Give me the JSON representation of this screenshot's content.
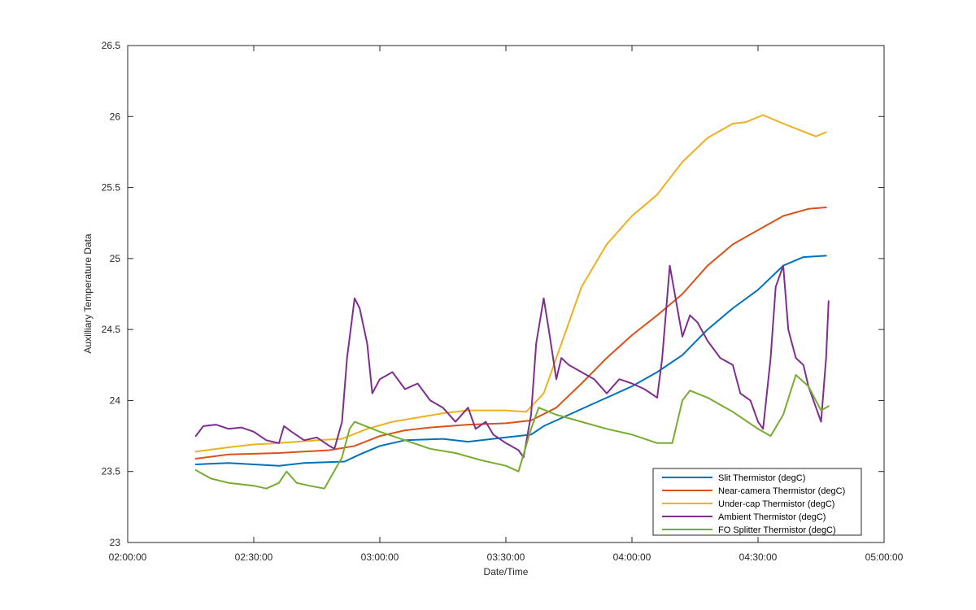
{
  "chart_data": {
    "type": "line",
    "title": "",
    "xlabel": "Date/Time",
    "ylabel": "Auxilliary Temperature Data",
    "x_unit": "hours",
    "xlim": [
      2.0,
      5.0
    ],
    "ylim": [
      23,
      26.5
    ],
    "x_ticks": [
      {
        "value": 2.0,
        "label": "02:00:00"
      },
      {
        "value": 2.5,
        "label": "02:30:00"
      },
      {
        "value": 3.0,
        "label": "03:00:00"
      },
      {
        "value": 3.5,
        "label": "03:30:00"
      },
      {
        "value": 4.0,
        "label": "04:00:00"
      },
      {
        "value": 4.5,
        "label": "04:30:00"
      },
      {
        "value": 5.0,
        "label": "05:00:00"
      }
    ],
    "y_ticks": [
      {
        "value": 23,
        "label": "23"
      },
      {
        "value": 23.5,
        "label": "23.5"
      },
      {
        "value": 24,
        "label": "24"
      },
      {
        "value": 24.5,
        "label": "24.5"
      },
      {
        "value": 25,
        "label": "25"
      },
      {
        "value": 25.5,
        "label": "25.5"
      },
      {
        "value": 26,
        "label": "26"
      },
      {
        "value": 26.5,
        "label": "26.5"
      }
    ],
    "grid": false,
    "legend_position": "bottom-right",
    "series": [
      {
        "name": "Slit Thermistor (degC)",
        "color": "#0072BD",
        "points": [
          [
            2.27,
            23.55
          ],
          [
            2.4,
            23.56
          ],
          [
            2.6,
            23.54
          ],
          [
            2.7,
            23.56
          ],
          [
            2.86,
            23.57
          ],
          [
            2.92,
            23.62
          ],
          [
            3.0,
            23.68
          ],
          [
            3.1,
            23.72
          ],
          [
            3.25,
            23.73
          ],
          [
            3.35,
            23.71
          ],
          [
            3.5,
            23.74
          ],
          [
            3.6,
            23.76
          ],
          [
            3.65,
            23.82
          ],
          [
            3.75,
            23.9
          ],
          [
            3.85,
            23.98
          ],
          [
            4.0,
            24.1
          ],
          [
            4.1,
            24.2
          ],
          [
            4.2,
            24.32
          ],
          [
            4.3,
            24.5
          ],
          [
            4.4,
            24.65
          ],
          [
            4.5,
            24.78
          ],
          [
            4.6,
            24.95
          ],
          [
            4.68,
            25.01
          ],
          [
            4.77,
            25.02
          ]
        ]
      },
      {
        "name": "Near-camera Thermistor (degC)",
        "color": "#D95319",
        "points": [
          [
            2.27,
            23.59
          ],
          [
            2.4,
            23.62
          ],
          [
            2.6,
            23.63
          ],
          [
            2.8,
            23.65
          ],
          [
            2.9,
            23.68
          ],
          [
            3.0,
            23.75
          ],
          [
            3.1,
            23.79
          ],
          [
            3.2,
            23.81
          ],
          [
            3.35,
            23.83
          ],
          [
            3.5,
            23.84
          ],
          [
            3.6,
            23.86
          ],
          [
            3.7,
            23.95
          ],
          [
            3.8,
            24.12
          ],
          [
            3.9,
            24.3
          ],
          [
            4.0,
            24.46
          ],
          [
            4.1,
            24.6
          ],
          [
            4.2,
            24.75
          ],
          [
            4.3,
            24.95
          ],
          [
            4.4,
            25.1
          ],
          [
            4.5,
            25.2
          ],
          [
            4.6,
            25.3
          ],
          [
            4.7,
            25.35
          ],
          [
            4.77,
            25.36
          ]
        ]
      },
      {
        "name": "Under-cap Thermistor (degC)",
        "color": "#EDB120",
        "points": [
          [
            2.27,
            23.64
          ],
          [
            2.4,
            23.67
          ],
          [
            2.5,
            23.69
          ],
          [
            2.6,
            23.7
          ],
          [
            2.75,
            23.72
          ],
          [
            2.85,
            23.73
          ],
          [
            2.95,
            23.8
          ],
          [
            3.05,
            23.85
          ],
          [
            3.15,
            23.88
          ],
          [
            3.25,
            23.91
          ],
          [
            3.35,
            23.93
          ],
          [
            3.5,
            23.93
          ],
          [
            3.58,
            23.92
          ],
          [
            3.65,
            24.05
          ],
          [
            3.72,
            24.4
          ],
          [
            3.8,
            24.8
          ],
          [
            3.9,
            25.1
          ],
          [
            4.0,
            25.3
          ],
          [
            4.1,
            25.45
          ],
          [
            4.2,
            25.68
          ],
          [
            4.3,
            25.85
          ],
          [
            4.4,
            25.95
          ],
          [
            4.45,
            25.96
          ],
          [
            4.52,
            26.01
          ],
          [
            4.6,
            25.95
          ],
          [
            4.7,
            25.88
          ],
          [
            4.73,
            25.86
          ],
          [
            4.77,
            25.89
          ]
        ]
      },
      {
        "name": "Ambient Thermistor (degC)",
        "color": "#7E2F8E",
        "points": [
          [
            2.27,
            23.75
          ],
          [
            2.3,
            23.82
          ],
          [
            2.35,
            23.83
          ],
          [
            2.4,
            23.8
          ],
          [
            2.45,
            23.81
          ],
          [
            2.5,
            23.78
          ],
          [
            2.55,
            23.72
          ],
          [
            2.6,
            23.7
          ],
          [
            2.62,
            23.82
          ],
          [
            2.65,
            23.78
          ],
          [
            2.7,
            23.72
          ],
          [
            2.75,
            23.74
          ],
          [
            2.8,
            23.68
          ],
          [
            2.82,
            23.66
          ],
          [
            2.85,
            23.85
          ],
          [
            2.87,
            24.3
          ],
          [
            2.9,
            24.72
          ],
          [
            2.92,
            24.65
          ],
          [
            2.95,
            24.4
          ],
          [
            2.97,
            24.05
          ],
          [
            3.0,
            24.15
          ],
          [
            3.05,
            24.2
          ],
          [
            3.1,
            24.08
          ],
          [
            3.15,
            24.12
          ],
          [
            3.2,
            24.0
          ],
          [
            3.25,
            23.95
          ],
          [
            3.3,
            23.85
          ],
          [
            3.35,
            23.95
          ],
          [
            3.38,
            23.8
          ],
          [
            3.42,
            23.85
          ],
          [
            3.45,
            23.76
          ],
          [
            3.5,
            23.7
          ],
          [
            3.55,
            23.65
          ],
          [
            3.57,
            23.6
          ],
          [
            3.6,
            23.9
          ],
          [
            3.62,
            24.4
          ],
          [
            3.65,
            24.72
          ],
          [
            3.67,
            24.5
          ],
          [
            3.7,
            24.15
          ],
          [
            3.72,
            24.3
          ],
          [
            3.75,
            24.25
          ],
          [
            3.8,
            24.2
          ],
          [
            3.85,
            24.15
          ],
          [
            3.9,
            24.05
          ],
          [
            3.95,
            24.15
          ],
          [
            4.0,
            24.12
          ],
          [
            4.05,
            24.08
          ],
          [
            4.1,
            24.02
          ],
          [
            4.12,
            24.3
          ],
          [
            4.15,
            24.95
          ],
          [
            4.17,
            24.75
          ],
          [
            4.2,
            24.45
          ],
          [
            4.23,
            24.6
          ],
          [
            4.26,
            24.55
          ],
          [
            4.3,
            24.42
          ],
          [
            4.35,
            24.3
          ],
          [
            4.4,
            24.25
          ],
          [
            4.43,
            24.05
          ],
          [
            4.47,
            24.0
          ],
          [
            4.5,
            23.85
          ],
          [
            4.52,
            23.8
          ],
          [
            4.55,
            24.3
          ],
          [
            4.57,
            24.8
          ],
          [
            4.6,
            24.95
          ],
          [
            4.62,
            24.5
          ],
          [
            4.65,
            24.3
          ],
          [
            4.68,
            24.25
          ],
          [
            4.7,
            24.1
          ],
          [
            4.73,
            23.95
          ],
          [
            4.75,
            23.85
          ],
          [
            4.77,
            24.3
          ],
          [
            4.78,
            24.7
          ]
        ]
      },
      {
        "name": "FO Splitter Thermistor (degC)",
        "color": "#77AC30",
        "points": [
          [
            2.27,
            23.51
          ],
          [
            2.33,
            23.45
          ],
          [
            2.4,
            23.42
          ],
          [
            2.5,
            23.4
          ],
          [
            2.55,
            23.38
          ],
          [
            2.6,
            23.42
          ],
          [
            2.63,
            23.5
          ],
          [
            2.67,
            23.42
          ],
          [
            2.72,
            23.4
          ],
          [
            2.78,
            23.38
          ],
          [
            2.85,
            23.6
          ],
          [
            2.88,
            23.8
          ],
          [
            2.9,
            23.85
          ],
          [
            3.0,
            23.78
          ],
          [
            3.1,
            23.72
          ],
          [
            3.2,
            23.66
          ],
          [
            3.3,
            23.63
          ],
          [
            3.4,
            23.58
          ],
          [
            3.5,
            23.54
          ],
          [
            3.55,
            23.5
          ],
          [
            3.6,
            23.8
          ],
          [
            3.63,
            23.95
          ],
          [
            3.7,
            23.9
          ],
          [
            3.8,
            23.85
          ],
          [
            3.9,
            23.8
          ],
          [
            4.0,
            23.76
          ],
          [
            4.1,
            23.7
          ],
          [
            4.16,
            23.7
          ],
          [
            4.2,
            24.0
          ],
          [
            4.23,
            24.07
          ],
          [
            4.3,
            24.02
          ],
          [
            4.4,
            23.92
          ],
          [
            4.5,
            23.8
          ],
          [
            4.55,
            23.75
          ],
          [
            4.6,
            23.9
          ],
          [
            4.65,
            24.18
          ],
          [
            4.7,
            24.1
          ],
          [
            4.75,
            23.93
          ],
          [
            4.78,
            23.96
          ]
        ]
      }
    ]
  }
}
